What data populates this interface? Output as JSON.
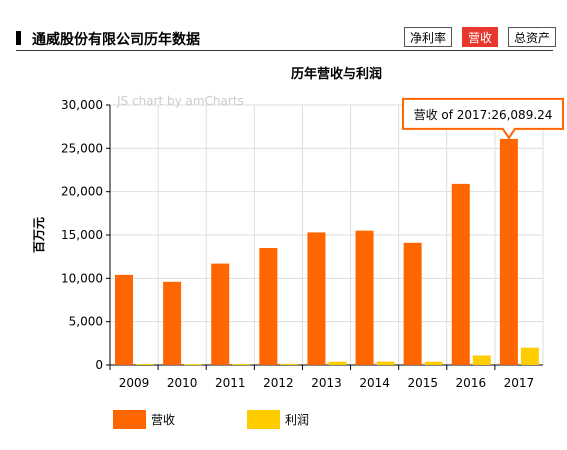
{
  "header": {
    "title": "通威股份有限公司历年数据",
    "tabs": [
      {
        "label": "净利率",
        "active": false
      },
      {
        "label": "营收",
        "active": true
      },
      {
        "label": "总资产",
        "active": false
      }
    ]
  },
  "colors": {
    "revenue": "#ff6600",
    "profit": "#ffcc00",
    "active_tab": "#e8372c",
    "tooltip_border": "#ff6600"
  },
  "watermark": "JS chart by amCharts",
  "tooltip": {
    "text": "营收 of 2017:26,089.24"
  },
  "chart_data": {
    "type": "bar",
    "title": "历年营收与利润",
    "xlabel": "",
    "ylabel": "百万元",
    "ylim": [
      0,
      30000
    ],
    "yticks": [
      "0",
      "5,000",
      "10,000",
      "15,000",
      "20,000",
      "25,000",
      "30,000"
    ],
    "categories": [
      "2009",
      "2010",
      "2011",
      "2012",
      "2013",
      "2014",
      "2015",
      "2016",
      "2017"
    ],
    "series": [
      {
        "name": "营收",
        "values": [
          10400,
          9600,
          11700,
          13500,
          15300,
          15500,
          14100,
          20900,
          26089.24
        ]
      },
      {
        "name": "利润",
        "values": [
          120,
          100,
          110,
          130,
          380,
          400,
          380,
          1100,
          2000
        ]
      }
    ],
    "grid": true,
    "legend": "bottom-left"
  }
}
